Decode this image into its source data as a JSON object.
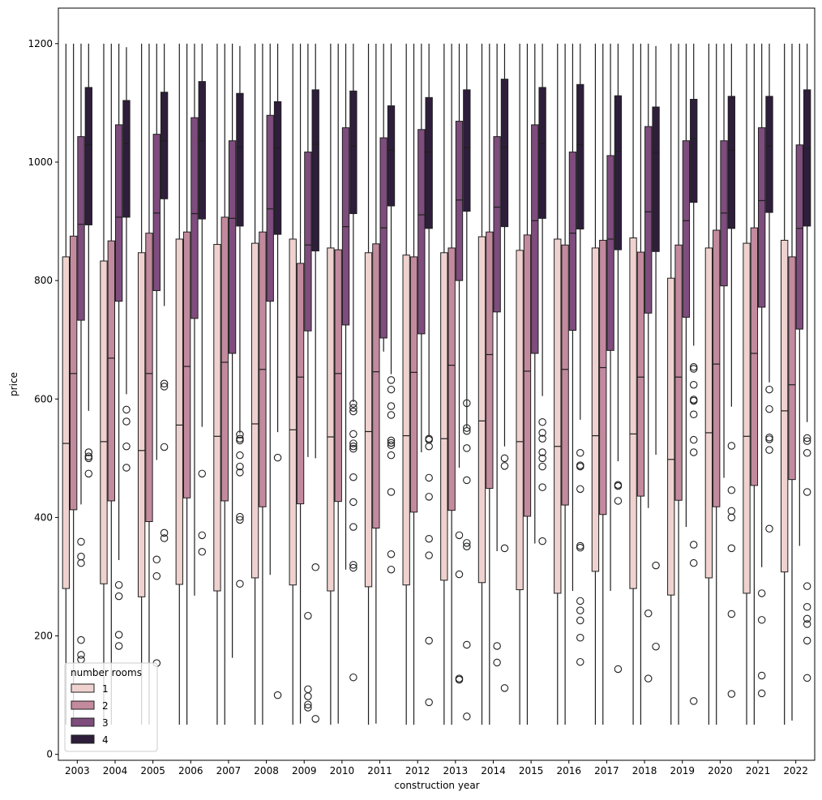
{
  "chart_data": {
    "type": "box",
    "xlabel": "construction year",
    "ylabel": "price",
    "ylim": [
      -10,
      1260
    ],
    "yticks": [
      "0",
      "200",
      "400",
      "600",
      "800",
      "1000",
      "1200"
    ],
    "ytick_values": [
      0,
      200,
      400,
      600,
      800,
      1000,
      1200
    ],
    "grid": false,
    "categories": [
      "2003",
      "2004",
      "2005",
      "2006",
      "2007",
      "2008",
      "2009",
      "2010",
      "2011",
      "2012",
      "2013",
      "2014",
      "2015",
      "2016",
      "2017",
      "2018",
      "2019",
      "2020",
      "2021",
      "2022"
    ],
    "legend": {
      "title": "number rooms",
      "placement": "lower-left",
      "entries": [
        "1",
        "2",
        "3",
        "4"
      ]
    },
    "colors": {
      "1": "#efd2cf",
      "2": "#c38a9e",
      "3": "#7e4c7d",
      "4": "#2e1e3b"
    },
    "series": [
      {
        "name": "1",
        "boxes": [
          {
            "q1": 280,
            "median": 525,
            "q3": 840,
            "whislo": 50,
            "whishi": 1200,
            "fliers": []
          },
          {
            "q1": 288,
            "median": 528,
            "q3": 833,
            "whislo": 50,
            "whishi": 1200,
            "fliers": []
          },
          {
            "q1": 266,
            "median": 513,
            "q3": 847,
            "whislo": 50,
            "whishi": 1200,
            "fliers": []
          },
          {
            "q1": 287,
            "median": 556,
            "q3": 870,
            "whislo": 50,
            "whishi": 1200,
            "fliers": []
          },
          {
            "q1": 276,
            "median": 537,
            "q3": 861,
            "whislo": 50,
            "whishi": 1200,
            "fliers": []
          },
          {
            "q1": 298,
            "median": 558,
            "q3": 863,
            "whislo": 50,
            "whishi": 1200,
            "fliers": []
          },
          {
            "q1": 286,
            "median": 548,
            "q3": 870,
            "whislo": 50,
            "whishi": 1200,
            "fliers": []
          },
          {
            "q1": 276,
            "median": 536,
            "q3": 855,
            "whislo": 50,
            "whishi": 1200,
            "fliers": []
          },
          {
            "q1": 283,
            "median": 545,
            "q3": 847,
            "whislo": 50,
            "whishi": 1200,
            "fliers": []
          },
          {
            "q1": 286,
            "median": 538,
            "q3": 843,
            "whislo": 50,
            "whishi": 1200,
            "fliers": []
          },
          {
            "q1": 294,
            "median": 533,
            "q3": 847,
            "whislo": 50,
            "whishi": 1200,
            "fliers": []
          },
          {
            "q1": 290,
            "median": 563,
            "q3": 874,
            "whislo": 50,
            "whishi": 1200,
            "fliers": []
          },
          {
            "q1": 278,
            "median": 528,
            "q3": 851,
            "whislo": 50,
            "whishi": 1200,
            "fliers": []
          },
          {
            "q1": 272,
            "median": 520,
            "q3": 870,
            "whislo": 50,
            "whishi": 1200,
            "fliers": []
          },
          {
            "q1": 309,
            "median": 538,
            "q3": 855,
            "whislo": 50,
            "whishi": 1200,
            "fliers": []
          },
          {
            "q1": 280,
            "median": 541,
            "q3": 872,
            "whislo": 50,
            "whishi": 1200,
            "fliers": []
          },
          {
            "q1": 269,
            "median": 498,
            "q3": 804,
            "whislo": 50,
            "whishi": 1200,
            "fliers": []
          },
          {
            "q1": 298,
            "median": 543,
            "q3": 855,
            "whislo": 50,
            "whishi": 1200,
            "fliers": []
          },
          {
            "q1": 272,
            "median": 537,
            "q3": 863,
            "whislo": 50,
            "whishi": 1200,
            "fliers": []
          },
          {
            "q1": 308,
            "median": 580,
            "q3": 868,
            "whislo": 50,
            "whishi": 1200,
            "fliers": []
          }
        ]
      },
      {
        "name": "2",
        "boxes": [
          {
            "q1": 413,
            "median": 643,
            "q3": 875,
            "whislo": 50,
            "whishi": 1200,
            "fliers": []
          },
          {
            "q1": 428,
            "median": 669,
            "q3": 867,
            "whislo": 50,
            "whishi": 1200,
            "fliers": []
          },
          {
            "q1": 393,
            "median": 643,
            "q3": 880,
            "whislo": 50,
            "whishi": 1200,
            "fliers": []
          },
          {
            "q1": 433,
            "median": 655,
            "q3": 882,
            "whislo": 50,
            "whishi": 1200,
            "fliers": []
          },
          {
            "q1": 428,
            "median": 662,
            "q3": 907,
            "whislo": 50,
            "whishi": 1200,
            "fliers": []
          },
          {
            "q1": 418,
            "median": 650,
            "q3": 882,
            "whislo": 50,
            "whishi": 1200,
            "fliers": []
          },
          {
            "q1": 423,
            "median": 637,
            "q3": 829,
            "whislo": 52,
            "whishi": 1200,
            "fliers": []
          },
          {
            "q1": 427,
            "median": 643,
            "q3": 852,
            "whislo": 52,
            "whishi": 1200,
            "fliers": []
          },
          {
            "q1": 382,
            "median": 646,
            "q3": 862,
            "whislo": 52,
            "whishi": 1200,
            "fliers": []
          },
          {
            "q1": 409,
            "median": 645,
            "q3": 840,
            "whislo": 50,
            "whishi": 1200,
            "fliers": []
          },
          {
            "q1": 412,
            "median": 657,
            "q3": 855,
            "whislo": 50,
            "whishi": 1200,
            "fliers": []
          },
          {
            "q1": 449,
            "median": 675,
            "q3": 882,
            "whislo": 50,
            "whishi": 1200,
            "fliers": []
          },
          {
            "q1": 402,
            "median": 647,
            "q3": 877,
            "whislo": 50,
            "whishi": 1200,
            "fliers": []
          },
          {
            "q1": 421,
            "median": 650,
            "q3": 860,
            "whislo": 50,
            "whishi": 1200,
            "fliers": []
          },
          {
            "q1": 405,
            "median": 653,
            "q3": 868,
            "whislo": 50,
            "whishi": 1200,
            "fliers": []
          },
          {
            "q1": 436,
            "median": 637,
            "q3": 848,
            "whislo": 50,
            "whishi": 1200,
            "fliers": []
          },
          {
            "q1": 429,
            "median": 637,
            "q3": 860,
            "whislo": 50,
            "whishi": 1200,
            "fliers": []
          },
          {
            "q1": 418,
            "median": 659,
            "q3": 885,
            "whislo": 50,
            "whishi": 1200,
            "fliers": []
          },
          {
            "q1": 454,
            "median": 677,
            "q3": 889,
            "whislo": 50,
            "whishi": 1200,
            "fliers": []
          },
          {
            "q1": 464,
            "median": 624,
            "q3": 840,
            "whislo": 57,
            "whishi": 1200,
            "fliers": []
          }
        ]
      },
      {
        "name": "3",
        "boxes": [
          {
            "q1": 733,
            "median": 895,
            "q3": 1043,
            "whislo": 422,
            "whishi": 1200,
            "fliers": [
              193,
              168,
              160,
              359,
              334,
              323
            ]
          },
          {
            "q1": 765,
            "median": 907,
            "q3": 1063,
            "whislo": 328,
            "whishi": 1200,
            "fliers": [
              267,
              202,
              183,
              286
            ]
          },
          {
            "q1": 783,
            "median": 914,
            "q3": 1047,
            "whislo": 497,
            "whishi": 1200,
            "fliers": [
              329,
              301,
              154
            ]
          },
          {
            "q1": 736,
            "median": 913,
            "q3": 1075,
            "whislo": 268,
            "whishi": 1200,
            "fliers": []
          },
          {
            "q1": 677,
            "median": 905,
            "q3": 1036,
            "whislo": 163,
            "whishi": 1200,
            "fliers": []
          },
          {
            "q1": 765,
            "median": 921,
            "q3": 1079,
            "whislo": 303,
            "whishi": 1200,
            "fliers": []
          },
          {
            "q1": 715,
            "median": 860,
            "q3": 1017,
            "whislo": 502,
            "whishi": 1200,
            "fliers": [
              234,
              110,
              98,
              84,
              79
            ]
          },
          {
            "q1": 725,
            "median": 891,
            "q3": 1058,
            "whislo": 312,
            "whishi": 1200,
            "fliers": []
          },
          {
            "q1": 703,
            "median": 889,
            "q3": 1041,
            "whislo": 680,
            "whishi": 1200,
            "fliers": []
          },
          {
            "q1": 710,
            "median": 911,
            "q3": 1055,
            "whislo": 510,
            "whishi": 1200,
            "fliers": []
          },
          {
            "q1": 800,
            "median": 936,
            "q3": 1069,
            "whislo": 484,
            "whishi": 1200,
            "fliers": [
              370,
              304,
              128,
              126
            ]
          },
          {
            "q1": 747,
            "median": 924,
            "q3": 1043,
            "whislo": 343,
            "whishi": 1200,
            "fliers": [
              183,
              155
            ]
          },
          {
            "q1": 677,
            "median": 901,
            "q3": 1063,
            "whislo": 356,
            "whishi": 1200,
            "fliers": []
          },
          {
            "q1": 716,
            "median": 880,
            "q3": 1017,
            "whislo": 276,
            "whishi": 1200,
            "fliers": []
          },
          {
            "q1": 682,
            "median": 870,
            "q3": 1011,
            "whislo": 276,
            "whishi": 1200,
            "fliers": []
          },
          {
            "q1": 745,
            "median": 916,
            "q3": 1060,
            "whislo": 416,
            "whishi": 1200,
            "fliers": [
              238,
              128
            ]
          },
          {
            "q1": 738,
            "median": 901,
            "q3": 1036,
            "whislo": 384,
            "whishi": 1200,
            "fliers": []
          },
          {
            "q1": 791,
            "median": 914,
            "q3": 1036,
            "whislo": 467,
            "whishi": 1200,
            "fliers": []
          },
          {
            "q1": 755,
            "median": 935,
            "q3": 1058,
            "whislo": 316,
            "whishi": 1200,
            "fliers": [
              272,
              227,
              133,
              103
            ]
          },
          {
            "q1": 718,
            "median": 888,
            "q3": 1029,
            "whislo": 352,
            "whishi": 1200,
            "fliers": []
          }
        ]
      },
      {
        "name": "4",
        "boxes": [
          {
            "q1": 894,
            "median": 1030,
            "q3": 1126,
            "whislo": 580,
            "whishi": 1200,
            "fliers": [
              510,
              503,
              500,
              474
            ]
          },
          {
            "q1": 907,
            "median": 1031,
            "q3": 1104,
            "whislo": 608,
            "whishi": 1194,
            "fliers": [
              582,
              562,
              520,
              484
            ]
          },
          {
            "q1": 938,
            "median": 1036,
            "q3": 1118,
            "whislo": 757,
            "whishi": 1200,
            "fliers": [
              626,
              621,
              519,
              374,
              365
            ]
          },
          {
            "q1": 904,
            "median": 1036,
            "q3": 1136,
            "whislo": 553,
            "whishi": 1200,
            "fliers": [
              474,
              370,
              342
            ]
          },
          {
            "q1": 892,
            "median": 1025,
            "q3": 1116,
            "whislo": 542,
            "whishi": 1196,
            "fliers": [
              540,
              533,
              530,
              505,
              486,
              476,
              401,
              396,
              288
            ]
          },
          {
            "q1": 878,
            "median": 1024,
            "q3": 1102,
            "whislo": 544,
            "whishi": 1200,
            "fliers": [
              501,
              100
            ]
          },
          {
            "q1": 850,
            "median": 1030,
            "q3": 1122,
            "whislo": 500,
            "whishi": 1200,
            "fliers": [
              316,
              60
            ]
          },
          {
            "q1": 913,
            "median": 1027,
            "q3": 1120,
            "whislo": 595,
            "whishi": 1200,
            "fliers": [
              592,
              585,
              579,
              541,
              525,
              520,
              516,
              468,
              426,
              384,
              320,
              315,
              130
            ]
          },
          {
            "q1": 926,
            "median": 1020,
            "q3": 1095,
            "whislo": 642,
            "whishi": 1200,
            "fliers": [
              632,
              616,
              588,
              573,
              530,
              526,
              522,
              505,
              443,
              338,
              312
            ]
          },
          {
            "q1": 888,
            "median": 1017,
            "q3": 1109,
            "whislo": 537,
            "whishi": 1200,
            "fliers": [
              533,
              531,
              520,
              467,
              435,
              364,
              336,
              192,
              88
            ]
          },
          {
            "q1": 917,
            "median": 1025,
            "q3": 1122,
            "whislo": 552,
            "whishi": 1200,
            "fliers": [
              593,
              551,
              546,
              517,
              463,
              357,
              351,
              185,
              64
            ]
          },
          {
            "q1": 891,
            "median": 1025,
            "q3": 1140,
            "whislo": 520,
            "whishi": 1200,
            "fliers": [
              500,
              487,
              348,
              112
            ]
          },
          {
            "q1": 905,
            "median": 1031,
            "q3": 1126,
            "whislo": 605,
            "whishi": 1200,
            "fliers": [
              561,
              543,
              533,
              510,
              500,
              486,
              451,
              360
            ]
          },
          {
            "q1": 887,
            "median": 1029,
            "q3": 1131,
            "whislo": 565,
            "whishi": 1200,
            "fliers": [
              509,
              488,
              486,
              448,
              352,
              349,
              259,
              243,
              226,
              197,
              156
            ]
          },
          {
            "q1": 852,
            "median": 1018,
            "q3": 1112,
            "whislo": 495,
            "whishi": 1200,
            "fliers": [
              455,
              453,
              428,
              144
            ]
          },
          {
            "q1": 849,
            "median": 1017,
            "q3": 1093,
            "whislo": 506,
            "whishi": 1196,
            "fliers": [
              319,
              182
            ]
          },
          {
            "q1": 932,
            "median": 1040,
            "q3": 1106,
            "whislo": 690,
            "whishi": 1200,
            "fliers": [
              654,
              651,
              624,
              599,
              597,
              574,
              531,
              510,
              354,
              323,
              90
            ]
          },
          {
            "q1": 888,
            "median": 1020,
            "q3": 1111,
            "whislo": 587,
            "whishi": 1200,
            "fliers": [
              521,
              446,
              411,
              400,
              348,
              237,
              102
            ]
          },
          {
            "q1": 915,
            "median": 1027,
            "q3": 1111,
            "whislo": 628,
            "whishi": 1200,
            "fliers": [
              616,
              583,
              535,
              532,
              514,
              381
            ]
          },
          {
            "q1": 892,
            "median": 1023,
            "q3": 1122,
            "whislo": 561,
            "whishi": 1200,
            "fliers": [
              534,
              529,
              509,
              443,
              284,
              249,
              229,
              220,
              192,
              129
            ]
          }
        ]
      }
    ]
  }
}
